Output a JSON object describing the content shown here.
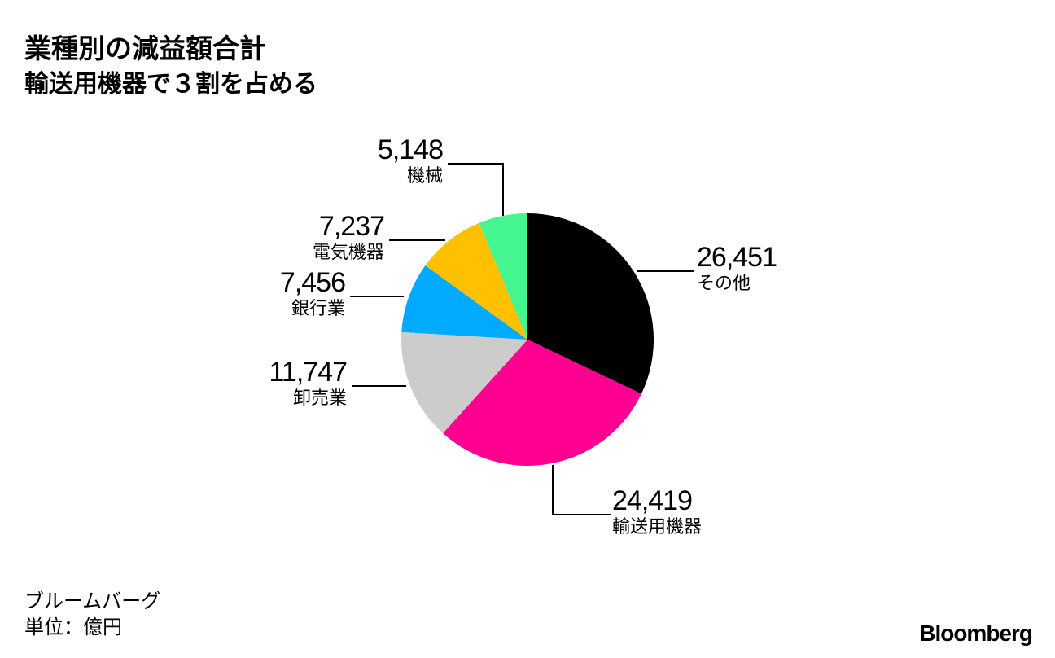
{
  "header": {
    "title": "業種別の減益額合計",
    "subtitle": "輸送用機器で３割を占める"
  },
  "footer": {
    "source": "ブルームバーグ",
    "unit": "単位：億円",
    "logo": "Bloomberg"
  },
  "chart_data": {
    "type": "pie",
    "unit": "億円",
    "slices": [
      {
        "label": "その他",
        "value": 26451,
        "value_label": "26,451",
        "color": "#000000"
      },
      {
        "label": "輸送用機器",
        "value": 24419,
        "value_label": "24,419",
        "color": "#ff0090"
      },
      {
        "label": "卸売業",
        "value": 11747,
        "value_label": "11,747",
        "color": "#cccccc"
      },
      {
        "label": "銀行業",
        "value": 7456,
        "value_label": "7,456",
        "color": "#00aaff"
      },
      {
        "label": "電気機器",
        "value": 7237,
        "value_label": "7,237",
        "color": "#ffc000"
      },
      {
        "label": "機械",
        "value": 5148,
        "value_label": "5,148",
        "color": "#44f590"
      }
    ],
    "start": "12 o'clock",
    "direction": "clockwise",
    "legend": "none"
  }
}
